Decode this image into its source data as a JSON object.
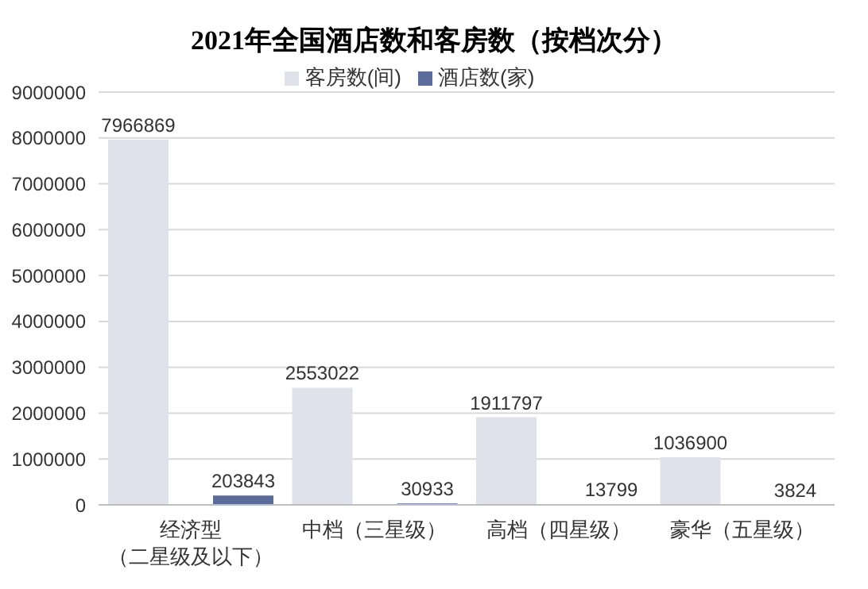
{
  "chart_data": {
    "type": "bar",
    "title": "2021年全国酒店数和客房数（按档次分）",
    "categories": [
      "经济型（二星级及以下）",
      "中档（三星级）",
      "高档（四星级）",
      "豪华（五星级）"
    ],
    "series": [
      {
        "name": "客房数(间)",
        "color": "#dfe2ea",
        "values": [
          7966869,
          2553022,
          1911797,
          1036900
        ]
      },
      {
        "name": "酒店数(家)",
        "color": "#5b6c9a",
        "values": [
          203843,
          30933,
          13799,
          3824
        ]
      }
    ],
    "ylim": [
      0,
      9000000
    ],
    "yticks": [
      0,
      1000000,
      2000000,
      3000000,
      4000000,
      5000000,
      6000000,
      7000000,
      8000000,
      9000000
    ],
    "grid": "y",
    "legend": "top",
    "data_labels": true
  }
}
